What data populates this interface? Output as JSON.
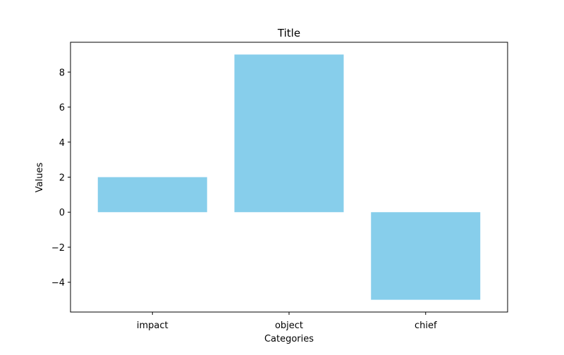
{
  "chart_data": {
    "type": "bar",
    "title": "Title",
    "xlabel": "Categories",
    "ylabel": "Values",
    "categories": [
      "impact",
      "object",
      "chief"
    ],
    "values": [
      2,
      9,
      -5
    ],
    "ylim": [
      -5.7,
      9.7
    ],
    "yticks": [
      -4,
      -2,
      0,
      2,
      4,
      6,
      8
    ],
    "ytick_labels": [
      "−4",
      "−2",
      "0",
      "2",
      "4",
      "6",
      "8"
    ],
    "bar_color": "#87CEEB",
    "grid": false,
    "legend": "none"
  }
}
